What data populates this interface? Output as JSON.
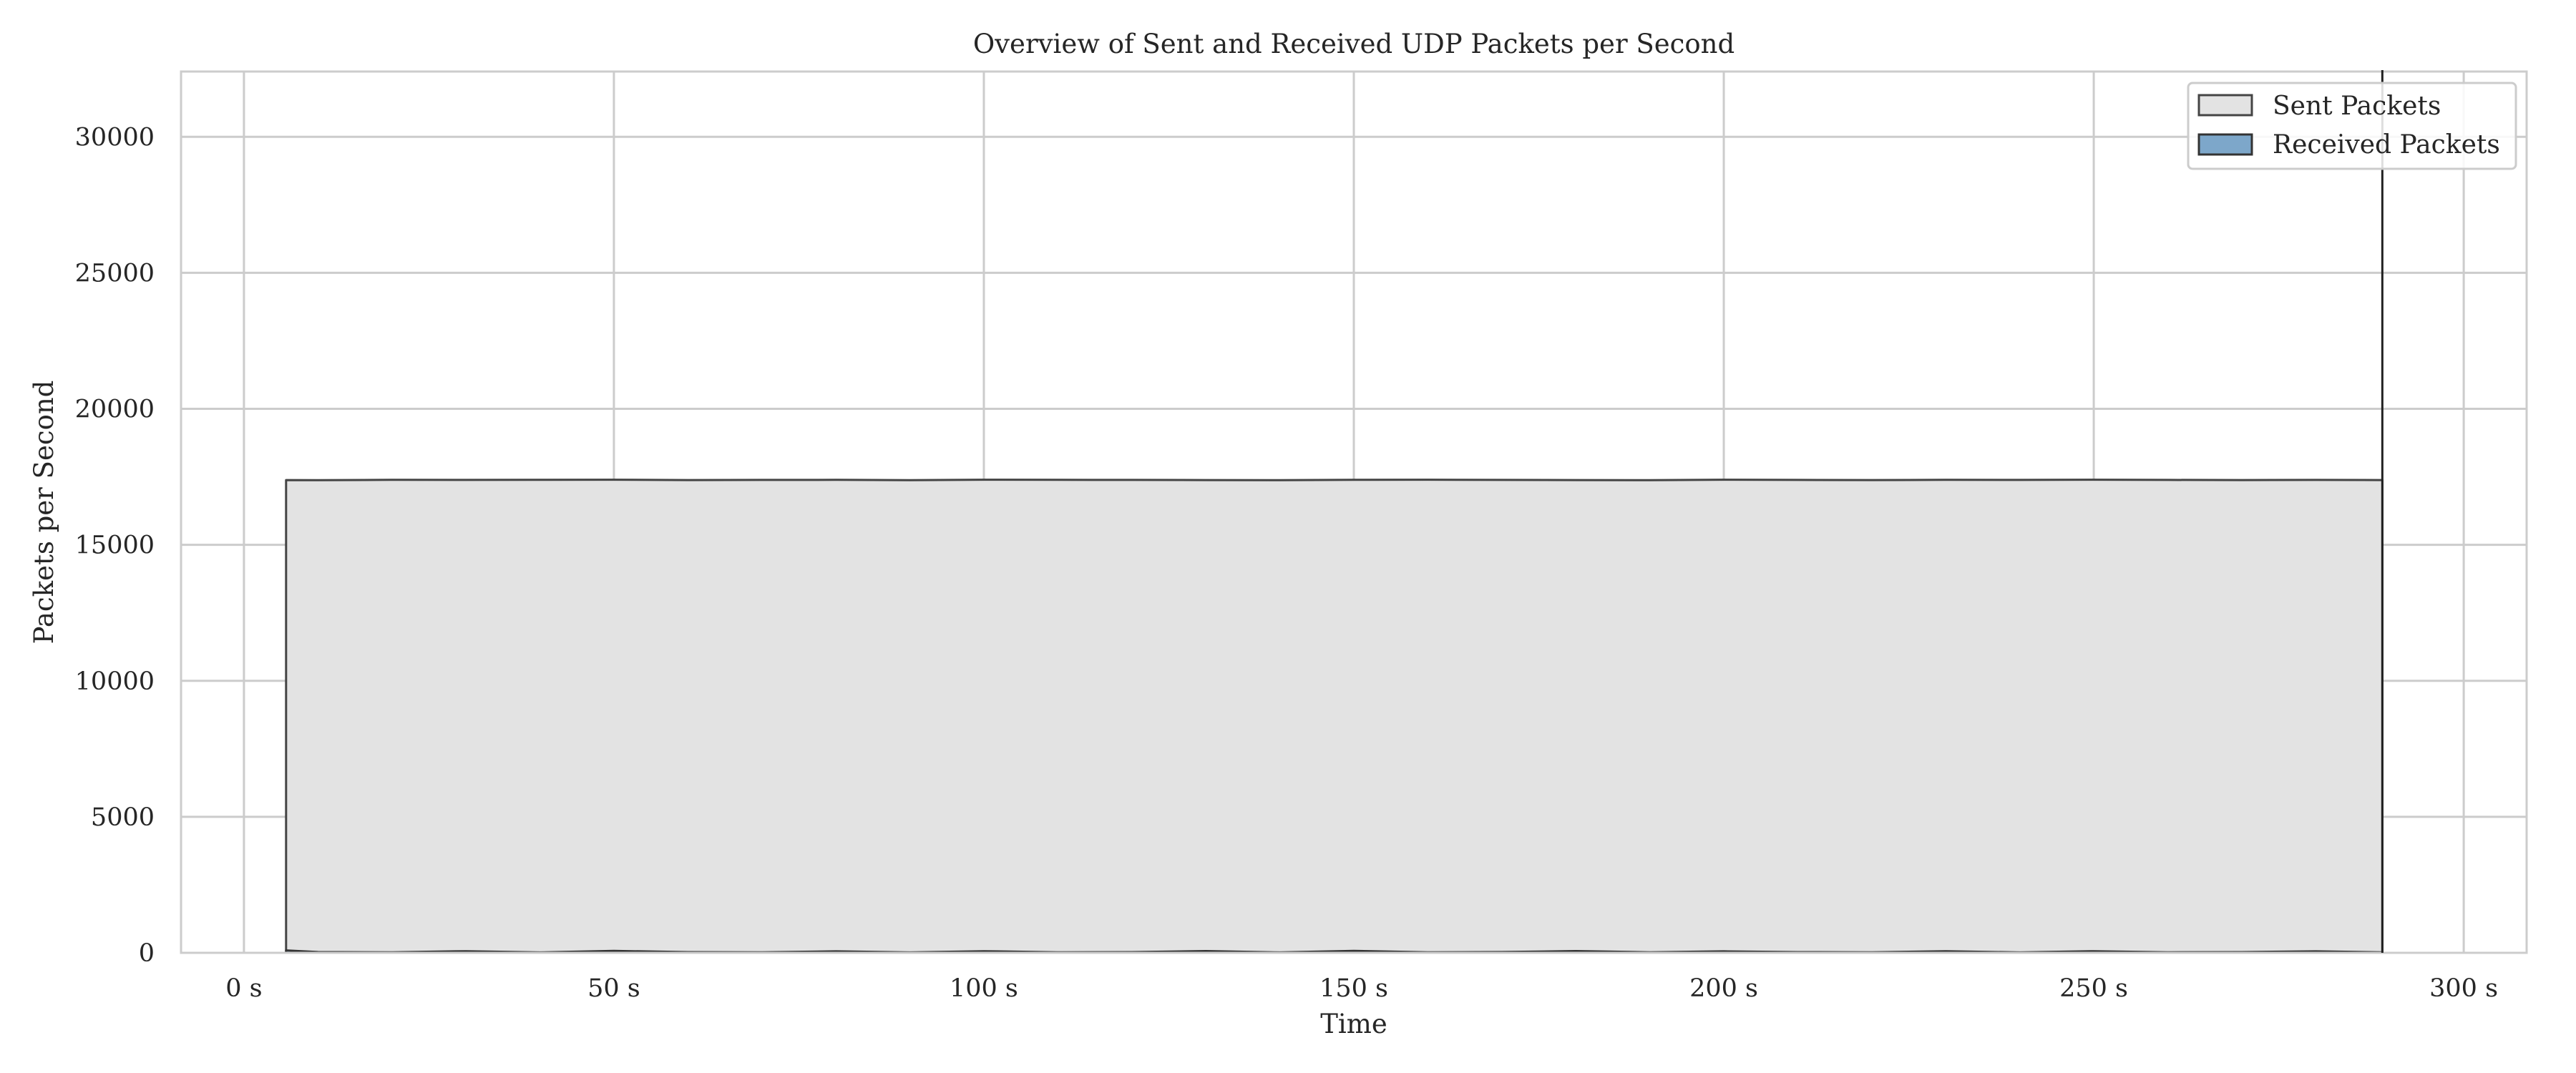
{
  "chart_data": {
    "type": "area",
    "title": "Overview of Sent and Received UDP Packets per Second",
    "xlabel": "Time",
    "ylabel": "Packets per Second",
    "xlim": [
      -8.5,
      308.5
    ],
    "ylim": [
      0,
      32400
    ],
    "x_ticks": [
      0,
      50,
      100,
      150,
      200,
      250,
      300
    ],
    "x_tick_labels": [
      "0 s",
      "50 s",
      "100 s",
      "150 s",
      "200 s",
      "250 s",
      "300 s"
    ],
    "y_ticks": [
      0,
      5000,
      10000,
      15000,
      20000,
      25000,
      30000
    ],
    "y_tick_labels": [
      "0",
      "5000",
      "10000",
      "15000",
      "20000",
      "25000",
      "30000"
    ],
    "grid": true,
    "legend_position": "top-right",
    "series": [
      {
        "name": "Sent Packets",
        "color": "#e3e3e3",
        "edge_color": "#444444",
        "x": [
          5.7,
          10,
          20,
          30,
          40,
          50,
          60,
          70,
          80,
          90,
          100,
          110,
          120,
          130,
          140,
          150,
          160,
          170,
          180,
          190,
          200,
          210,
          220,
          230,
          240,
          250,
          260,
          270,
          280,
          289
        ],
        "values": [
          17380,
          17375,
          17390,
          17385,
          17390,
          17395,
          17380,
          17385,
          17390,
          17375,
          17395,
          17390,
          17385,
          17380,
          17375,
          17390,
          17395,
          17385,
          17380,
          17375,
          17395,
          17385,
          17380,
          17390,
          17385,
          17395,
          17385,
          17380,
          17385,
          17380
        ]
      },
      {
        "name": "Received Packets",
        "color": "#7da7ca",
        "edge_color": "#333333",
        "x": [
          5.7,
          10,
          20,
          30,
          40,
          50,
          60,
          70,
          80,
          90,
          100,
          110,
          120,
          130,
          140,
          150,
          160,
          170,
          180,
          190,
          200,
          210,
          220,
          230,
          240,
          250,
          260,
          270,
          280,
          289
        ],
        "values": [
          90,
          30,
          20,
          60,
          15,
          70,
          25,
          20,
          55,
          15,
          60,
          20,
          25,
          65,
          15,
          70,
          20,
          30,
          65,
          20,
          55,
          25,
          20,
          60,
          15,
          60,
          20,
          25,
          55,
          20
        ]
      }
    ],
    "vertical_marker_x": 289
  }
}
